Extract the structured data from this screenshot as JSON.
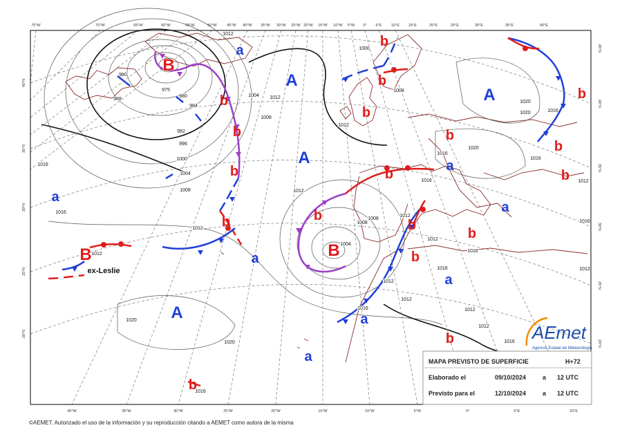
{
  "map": {
    "lon_top": [
      "75°W",
      "70°W",
      "65°W",
      "60°W",
      "55°W",
      "50°W",
      "45°W",
      "40°W",
      "35°W",
      "30°W",
      "25°W",
      "20°W",
      "15°W",
      "10°W",
      "5°W",
      "0°",
      "5°E",
      "10°E",
      "15°E",
      "20°E",
      "25°E",
      "30°E",
      "35°E",
      "40°E"
    ],
    "lon_bottom": [
      "40°W",
      "35°W",
      "30°W",
      "25°W",
      "20°W",
      "15°W",
      "10°W",
      "5°W",
      "0°",
      "5°E",
      "10°E"
    ],
    "lat_left": [
      "40°N",
      "35°N",
      "30°N",
      "25°N",
      "20°N"
    ],
    "lat_right": [
      "45°N",
      "40°N",
      "35°N",
      "30°N",
      "25°N",
      "20°N"
    ],
    "isobar_labels": [
      "1012",
      "980",
      "975",
      "980",
      "984",
      "988",
      "992",
      "996",
      "1000",
      "1004",
      "1008",
      "1016",
      "1016",
      "1012",
      "1012",
      "1004",
      "1008",
      "1012",
      "1012",
      "1000",
      "1008",
      "1012",
      "1016",
      "1020",
      "1016",
      "1008",
      "1008",
      "1004",
      "1012",
      "1012",
      "1016",
      "1016",
      "1012",
      "1016",
      "1012",
      "1012",
      "1012",
      "1016",
      "1020",
      "1020",
      "1016",
      "1020",
      "1020",
      "1016",
      "1012",
      "1012",
      "1016",
      "1016"
    ],
    "highs": [
      "A",
      "A",
      "A",
      "A"
    ],
    "lows": [
      "B",
      "B",
      "B"
    ],
    "relative_highs": [
      "a",
      "a",
      "a",
      "a",
      "a",
      "a",
      "a",
      "a"
    ],
    "relative_lows": [
      "b",
      "b",
      "b",
      "b",
      "b",
      "b",
      "b",
      "b",
      "b",
      "b",
      "b",
      "b",
      "b",
      "b",
      "b",
      "b",
      "b",
      "b"
    ],
    "storm_name": "ex-Leslie"
  },
  "info_box": {
    "title": "MAPA PREVISTO DE SUPERFICIE",
    "step": "H+72",
    "rows": [
      [
        "Elaborado el",
        "09/10/2024",
        "a",
        "12 UTC"
      ],
      [
        "Previsto para el",
        "12/10/2024",
        "a",
        "12 UTC"
      ]
    ]
  },
  "logo": {
    "name": "AEmet",
    "agency": "Agencia Estatal de Meteorología"
  },
  "footer": "©AEMET. Autorizado el uso de la información y su reproducción citando a AEMET como autora de la misma"
}
